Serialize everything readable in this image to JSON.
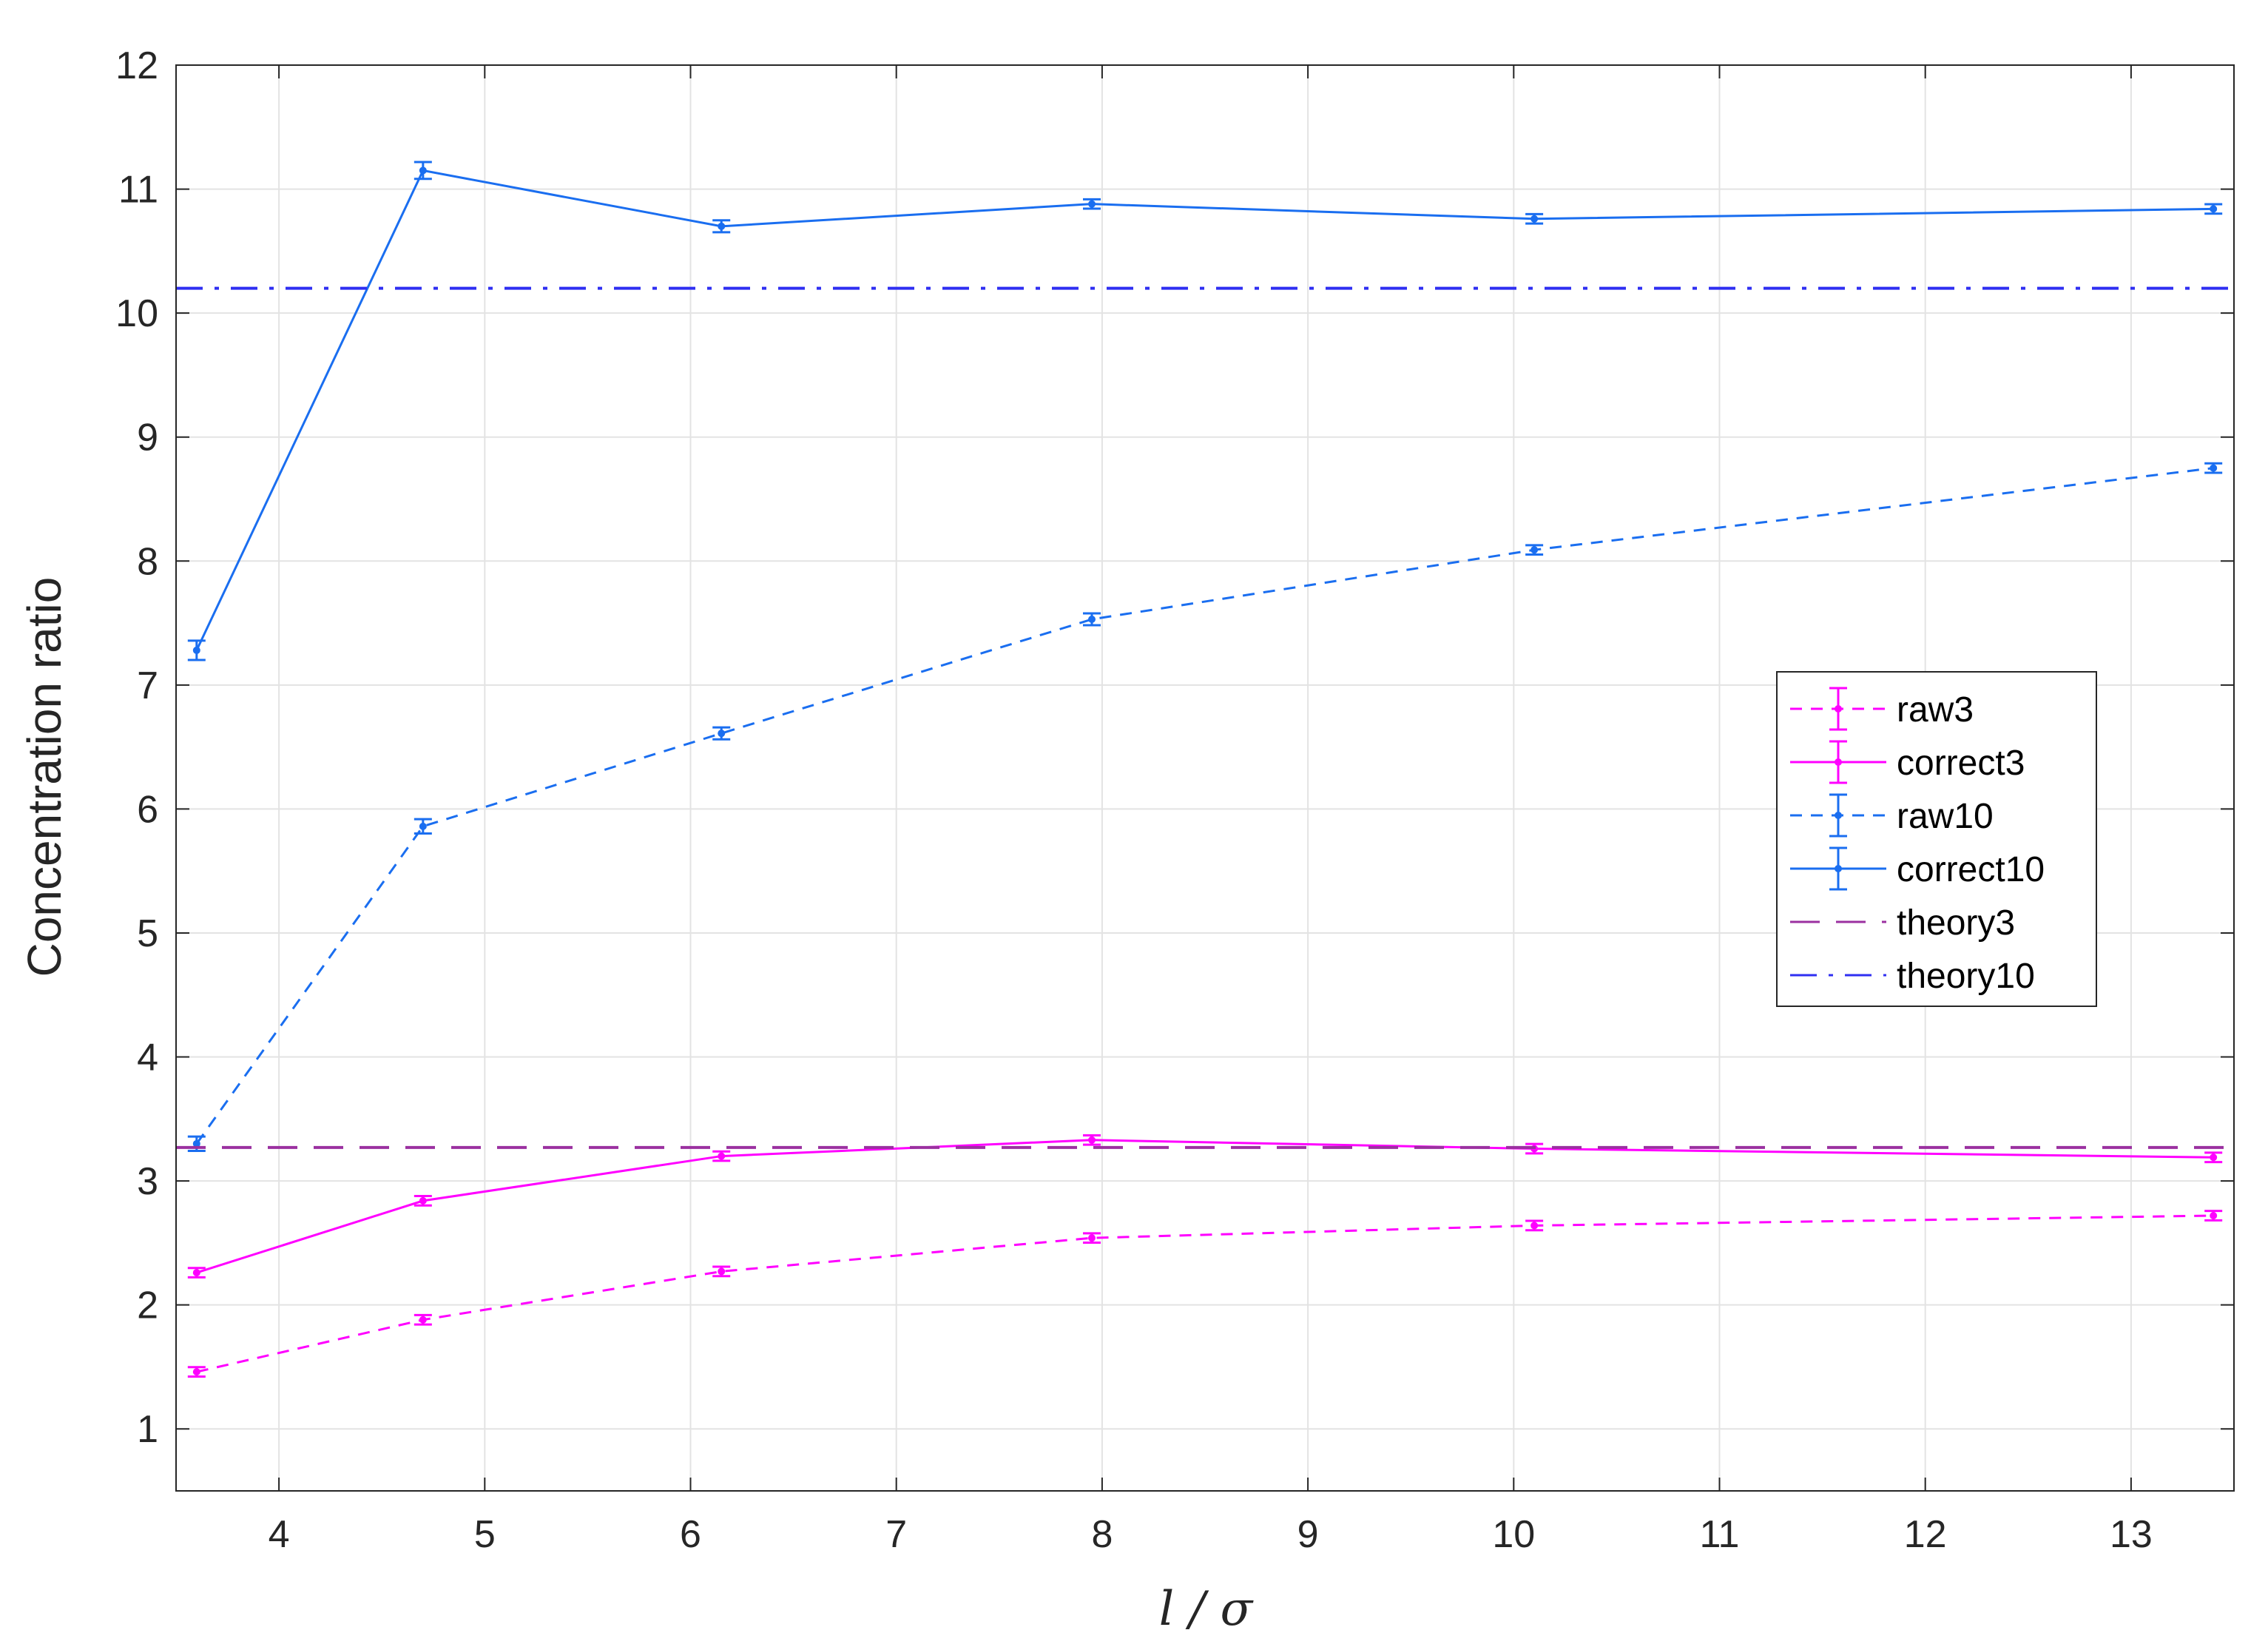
{
  "chart_data": {
    "type": "line",
    "xlabel": "l / σ",
    "ylabel": "Concentration ratio",
    "xlim": [
      3.5,
      13.5
    ],
    "ylim": [
      0.5,
      12
    ],
    "xticks": [
      4,
      5,
      6,
      7,
      8,
      9,
      10,
      11,
      12,
      13
    ],
    "yticks": [
      1,
      2,
      3,
      4,
      5,
      6,
      7,
      8,
      9,
      10,
      11,
      12
    ],
    "grid": true,
    "legend_position": "right",
    "series": [
      {
        "name": "raw3",
        "style": "dashed-errorbar",
        "color": "#ff00ff",
        "x": [
          3.6,
          4.7,
          6.15,
          7.95,
          10.1,
          13.4
        ],
        "y": [
          1.46,
          1.88,
          2.27,
          2.54,
          2.64,
          2.72
        ],
        "err": [
          0.02,
          0.02,
          0.02,
          0.02,
          0.02,
          0.02
        ]
      },
      {
        "name": "correct3",
        "style": "solid-errorbar",
        "color": "#ff00ff",
        "x": [
          3.6,
          4.7,
          6.15,
          7.95,
          10.1,
          13.4
        ],
        "y": [
          2.26,
          2.84,
          3.2,
          3.33,
          3.26,
          3.19
        ],
        "err": [
          0.02,
          0.02,
          0.02,
          0.02,
          0.02,
          0.02
        ]
      },
      {
        "name": "raw10",
        "style": "dashed-errorbar",
        "color": "#1a6ef0",
        "x": [
          3.6,
          4.7,
          6.15,
          7.95,
          10.1,
          13.4
        ],
        "y": [
          3.3,
          5.86,
          6.61,
          7.53,
          8.09,
          8.75
        ],
        "err": [
          0.04,
          0.04,
          0.03,
          0.03,
          0.02,
          0.02
        ]
      },
      {
        "name": "correct10",
        "style": "solid-errorbar",
        "color": "#1a6ef0",
        "x": [
          3.6,
          4.7,
          6.15,
          7.95,
          10.1,
          13.4
        ],
        "y": [
          7.28,
          11.15,
          10.7,
          10.88,
          10.76,
          10.84
        ],
        "err": [
          0.06,
          0.05,
          0.03,
          0.02,
          0.02,
          0.02
        ]
      },
      {
        "name": "theory3",
        "style": "long-dash",
        "color": "#9b30a0",
        "y_constant": 3.27
      },
      {
        "name": "theory10",
        "style": "dash-dot",
        "color": "#2f2ff2",
        "y_constant": 10.2
      }
    ]
  }
}
